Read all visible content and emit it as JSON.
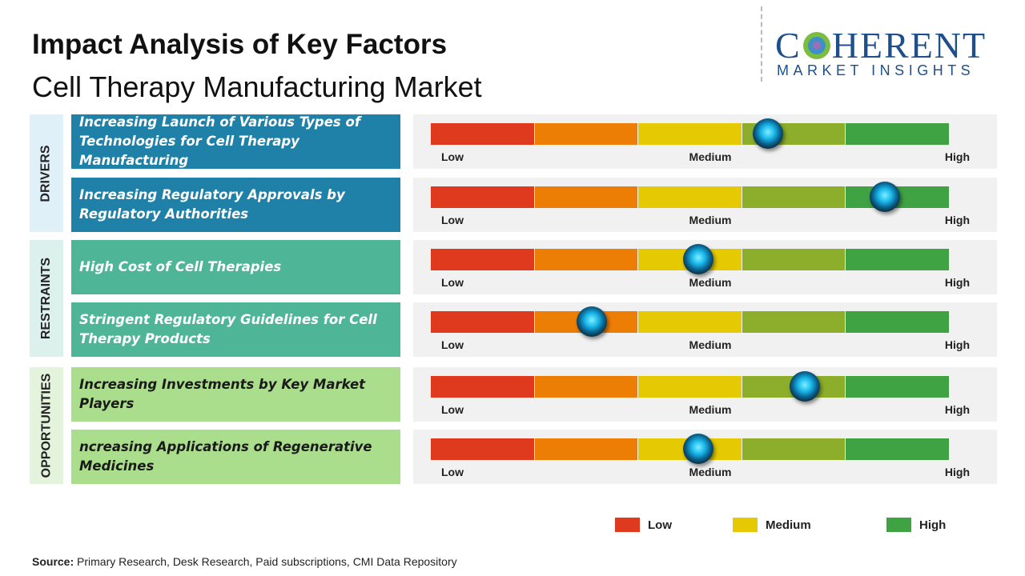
{
  "header": {
    "title": "Impact Analysis of Key Factors",
    "subtitle": "Cell Therapy Manufacturing Market"
  },
  "logo": {
    "name_start": "C",
    "name_end": "HERENT",
    "tagline": "MARKET INSIGHTS"
  },
  "scale": {
    "labels": [
      "Low",
      "Medium",
      "High"
    ],
    "segment_colors": [
      "#e03a1e",
      "#ec7d05",
      "#e5c902",
      "#8cae2a",
      "#3fa243"
    ]
  },
  "groups": [
    {
      "label": "DRIVERS",
      "factors": [
        {
          "text": "Increasing Launch of Various Types of Technologies for Cell Therapy Manufacturing",
          "impact": 0.65
        },
        {
          "text": "Increasing Regulatory Approvals by Regulatory Authorities",
          "impact": 0.875
        }
      ]
    },
    {
      "label": "RESTRAINTS",
      "factors": [
        {
          "text": "High Cost of Cell Therapies",
          "impact": 0.515
        },
        {
          "text": "Stringent Regulatory Guidelines for Cell Therapy Products",
          "impact": 0.31
        }
      ]
    },
    {
      "label": "OPPORTUNITIES",
      "factors": [
        {
          "text": "Increasing Investments by Key Market Players",
          "impact": 0.72
        },
        {
          "text": "ncreasing Applications of Regenerative Medicines",
          "impact": 0.515
        }
      ]
    }
  ],
  "legend": [
    {
      "label": "Low",
      "color": "#e03a1e"
    },
    {
      "label": "Medium",
      "color": "#e5c902"
    },
    {
      "label": "High",
      "color": "#3fa243"
    }
  ],
  "source": {
    "label": "Source:",
    "text": "Primary Research, Desk Research, Paid subscriptions, CMI Data Repository"
  }
}
